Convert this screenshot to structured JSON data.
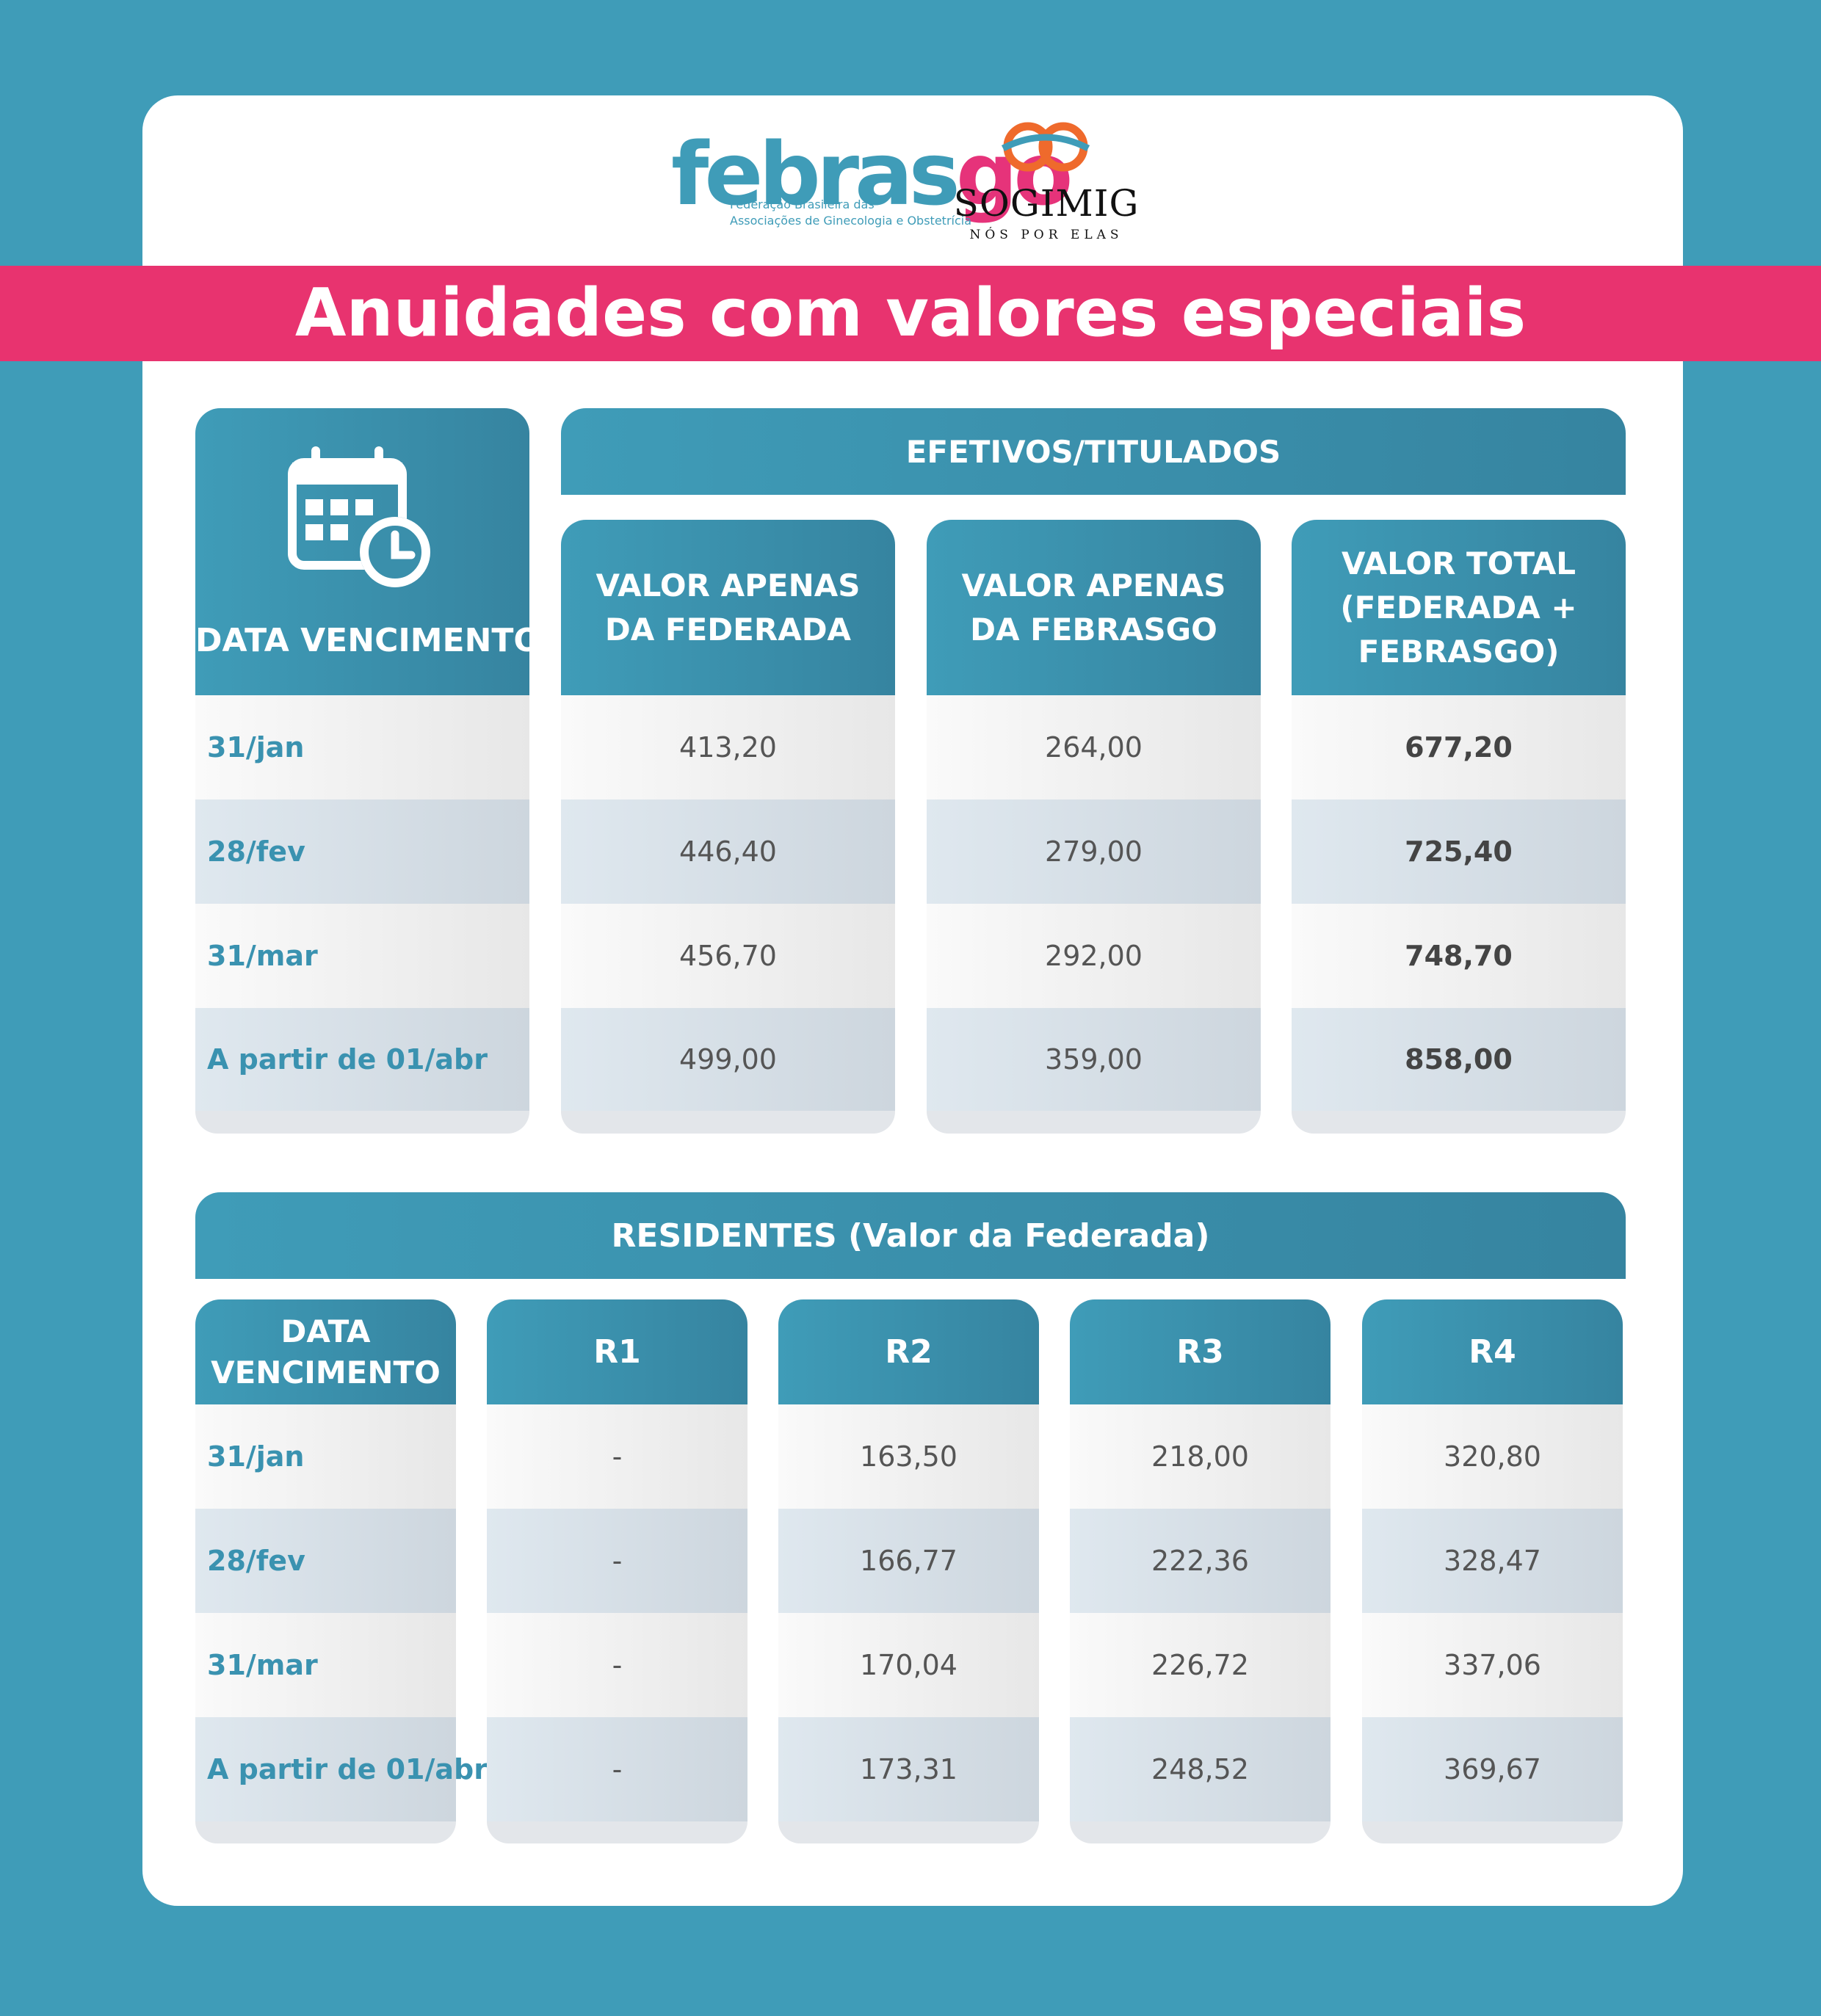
{
  "logos": {
    "febrasgo": {
      "word_main": "febras",
      "word_accent": "go",
      "subtitle_line1": "Federação Brasileira das",
      "subtitle_line2": "Associações de Ginecologia e Obstetrícia"
    },
    "sogimig": {
      "name": "SOGIMIG",
      "tagline": "NÓS POR ELAS"
    }
  },
  "title": "Anuidades com valores especiais",
  "colors": {
    "background": "#3f9cb8",
    "banner": "#e8336f",
    "header": "#3f9cb8",
    "date_text": "#3a92b0"
  },
  "efetivos": {
    "date_header": "DATA VENCIMENTO",
    "group_header": "EFETIVOS/TITULADOS",
    "columns": [
      "VALOR APENAS DA FEDERADA",
      "VALOR APENAS DA FEBRASGO",
      "VALOR TOTAL (FEDERADA + FEBRASGO)"
    ],
    "rows": [
      {
        "date": "31/jan",
        "values": [
          "413,20",
          "264,00",
          "677,20"
        ]
      },
      {
        "date": "28/fev",
        "values": [
          "446,40",
          "279,00",
          "725,40"
        ]
      },
      {
        "date": "31/mar",
        "values": [
          "456,70",
          "292,00",
          "748,70"
        ]
      },
      {
        "date": "A partir de 01/abr",
        "values": [
          "499,00",
          "359,00",
          "858,00"
        ]
      }
    ]
  },
  "residentes": {
    "group_header": "RESIDENTES (Valor da Federada)",
    "date_header": "DATA VENCIMENTO",
    "columns": [
      "R1",
      "R2",
      "R3",
      "R4"
    ],
    "rows": [
      {
        "date": "31/jan",
        "values": [
          "-",
          "163,50",
          "218,00",
          "320,80"
        ]
      },
      {
        "date": "28/fev",
        "values": [
          "-",
          "166,77",
          "222,36",
          "328,47"
        ]
      },
      {
        "date": "31/mar",
        "values": [
          "-",
          "170,04",
          "226,72",
          "337,06"
        ]
      },
      {
        "date": "A partir de 01/abr",
        "values": [
          "-",
          "173,31",
          "248,52",
          "369,67"
        ]
      }
    ]
  }
}
